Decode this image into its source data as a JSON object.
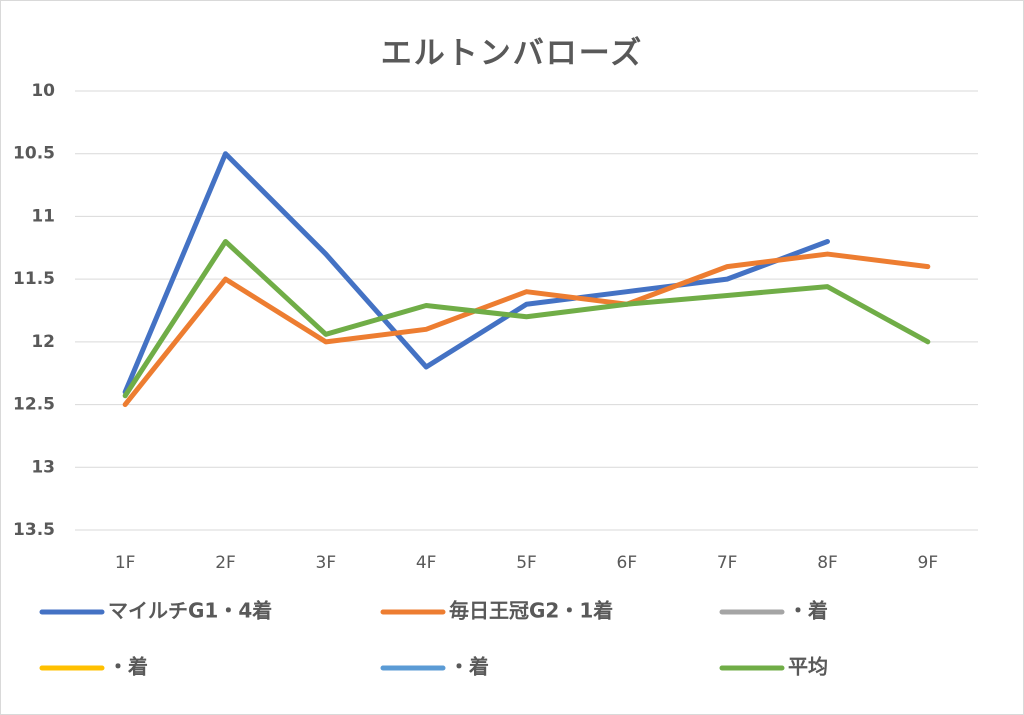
{
  "chart_data": {
    "type": "line",
    "title": "エルトンバローズ",
    "categories": [
      "1F",
      "2F",
      "3F",
      "4F",
      "5F",
      "6F",
      "7F",
      "8F",
      "9F"
    ],
    "series": [
      {
        "name": "マイルチG1・4着",
        "color": "#4472c4",
        "values": [
          12.4,
          10.5,
          11.3,
          12.2,
          11.7,
          11.6,
          11.5,
          11.2,
          null
        ]
      },
      {
        "name": "毎日王冠G2・1着",
        "color": "#ed7d31",
        "values": [
          12.5,
          11.5,
          12.0,
          11.9,
          11.6,
          11.7,
          11.4,
          11.3,
          11.4
        ]
      },
      {
        "name": "・着",
        "color": "#a5a5a5",
        "values": [
          null,
          null,
          null,
          null,
          null,
          null,
          null,
          null,
          null
        ]
      },
      {
        "name": "・着",
        "color": "#ffc000",
        "values": [
          null,
          null,
          null,
          null,
          null,
          null,
          null,
          null,
          null
        ]
      },
      {
        "name": "・着",
        "color": "#5b9bd5",
        "values": [
          null,
          null,
          null,
          null,
          null,
          null,
          null,
          null,
          null
        ]
      },
      {
        "name": "平均",
        "color": "#70ad47",
        "values": [
          12.43,
          11.2,
          11.94,
          11.71,
          11.8,
          11.7,
          11.63,
          11.56,
          12.0
        ]
      }
    ],
    "ylim": [
      10,
      13.5
    ],
    "yticks": [
      10,
      10.5,
      11,
      11.5,
      12,
      12.5,
      13,
      13.5
    ],
    "y_inverted": true,
    "grid": true,
    "legend": "bottom"
  }
}
